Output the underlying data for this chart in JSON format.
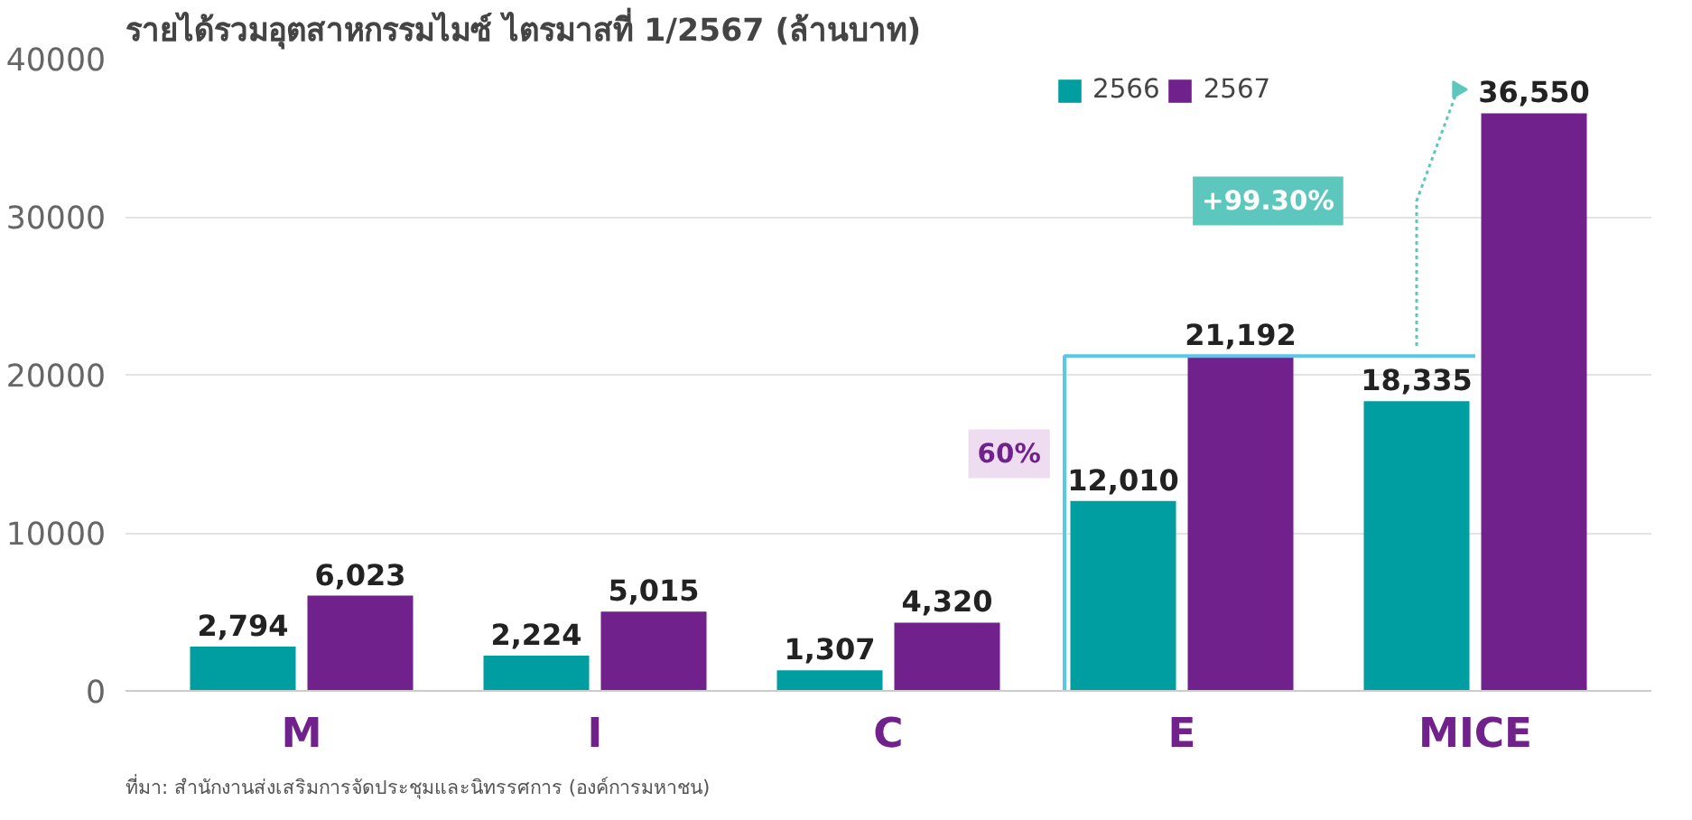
{
  "chart_data": {
    "type": "bar",
    "title": "รายได้รวมอุตสาหกรรมไมซ์ ไตรมาสที่ 1/2567 (ล้านบาท)",
    "categories": [
      "M",
      "I",
      "C",
      "E",
      "MICE"
    ],
    "series": [
      {
        "name": "2566",
        "color": "#009ea0",
        "values": [
          2794,
          2224,
          1307,
          12010,
          18335
        ],
        "value_labels": [
          "2,794",
          "2,224",
          "1,307",
          "12,010",
          "18,335"
        ]
      },
      {
        "name": "2567",
        "color": "#70218b",
        "values": [
          6023,
          5015,
          4320,
          21192,
          36550
        ],
        "value_labels": [
          "6,023",
          "5,015",
          "4,320",
          "21,192",
          "36,550"
        ]
      }
    ],
    "ylim": [
      0,
      40000
    ],
    "yticks": [
      0,
      10000,
      20000,
      30000,
      40000
    ],
    "grid": "y",
    "legend": "top right",
    "annotations": [
      "+99.30%",
      "60%",
      "ที่มา: สำนักงานส่งเสริมการจัดประชุมและนิทรรศการ (องค์การมหาชน)"
    ]
  }
}
